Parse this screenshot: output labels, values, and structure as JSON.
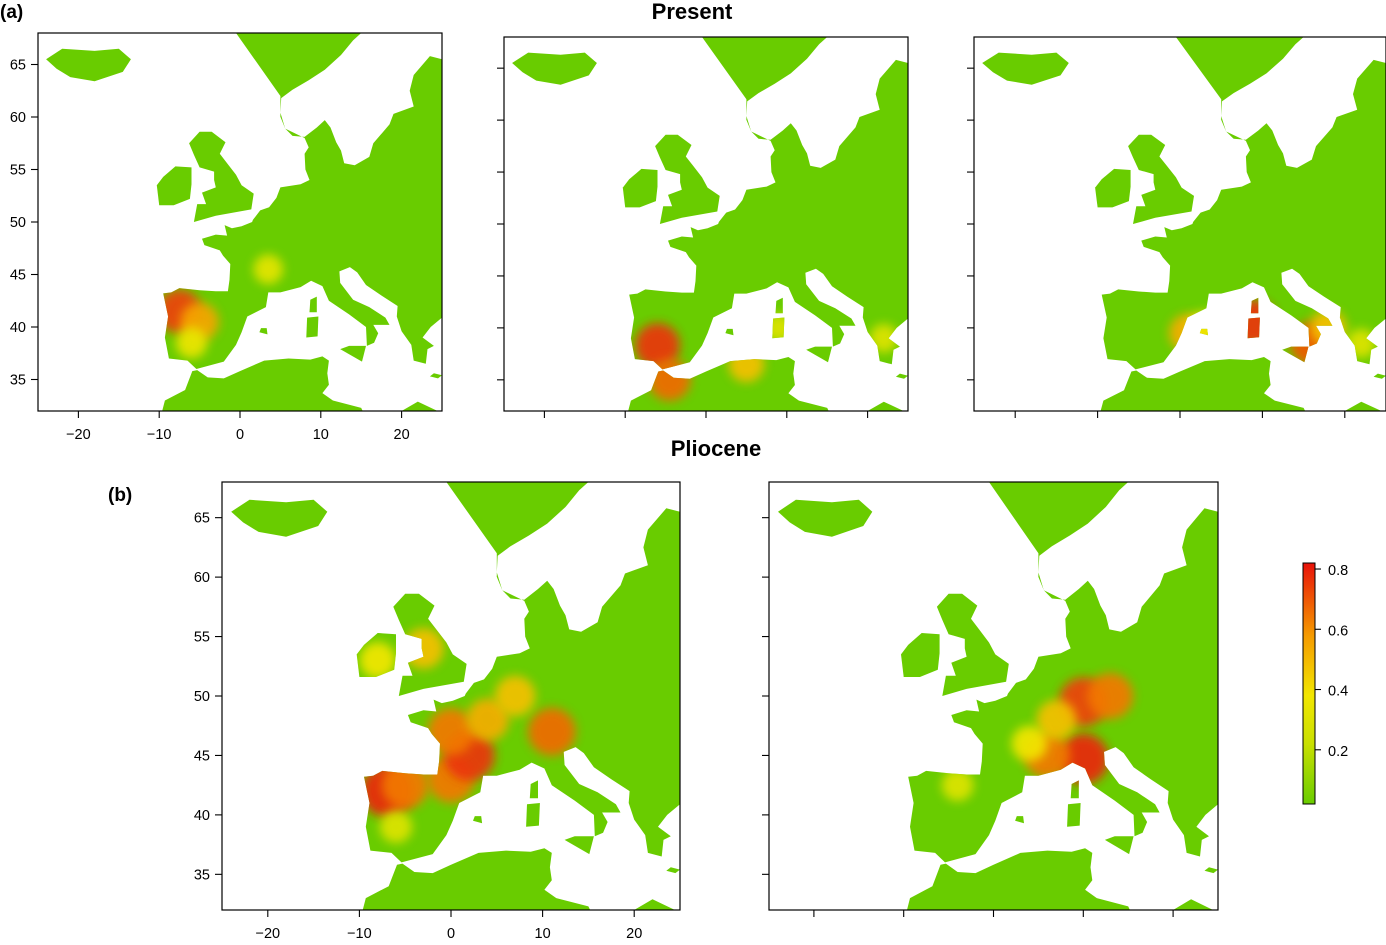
{
  "figure": {
    "panel_a_letter": "(a)",
    "panel_b_letter": "(b)",
    "row_a_title": "Present",
    "row_b_title": "Pliocene"
  },
  "axes": {
    "x_ticks": [
      -20,
      -10,
      0,
      10,
      20
    ],
    "y_ticks": [
      35,
      40,
      45,
      50,
      55,
      60,
      65
    ],
    "x_tick_labels": [
      "−20",
      "−10",
      "0",
      "10",
      "20"
    ],
    "y_tick_labels": [
      "35",
      "40",
      "45",
      "50",
      "55",
      "60",
      "65"
    ],
    "lon_range": [
      -25,
      25
    ],
    "lat_range": [
      32,
      68
    ]
  },
  "colors": {
    "land_low": "#69cc00",
    "mid": "#f2e600",
    "high": "#e8120a",
    "background": "#ffffff"
  },
  "colorbar": {
    "range": [
      0.02,
      0.82
    ],
    "tick_values": [
      0.2,
      0.4,
      0.6,
      0.8
    ],
    "tick_labels": [
      "0.2",
      "0.4",
      "0.6",
      "0.8"
    ]
  },
  "maps": [
    {
      "id": "present-1",
      "row": "a",
      "hotspots": [
        {
          "lon": -7.5,
          "lat": 41.5,
          "value": 0.78
        },
        {
          "lon": -5,
          "lat": 40.5,
          "value": 0.62
        },
        {
          "lon": -6,
          "lat": 38.5,
          "value": 0.42
        },
        {
          "lon": 3.5,
          "lat": 45.5,
          "value": 0.38
        }
      ]
    },
    {
      "id": "present-2",
      "row": "a",
      "hotspots": [
        {
          "lon": -6,
          "lat": 38.3,
          "value": 0.8
        },
        {
          "lon": -4.5,
          "lat": 35,
          "value": 0.72
        },
        {
          "lon": 5,
          "lat": 36.5,
          "value": 0.55
        },
        {
          "lon": 9,
          "lat": 40,
          "value": 0.35
        },
        {
          "lon": 22,
          "lat": 39,
          "value": 0.35
        }
      ]
    },
    {
      "id": "present-3",
      "row": "a",
      "hotspots": [
        {
          "lon": 9,
          "lat": 40.5,
          "value": 0.8
        },
        {
          "lon": 16,
          "lat": 38.5,
          "value": 0.75
        },
        {
          "lon": 18,
          "lat": 40,
          "value": 0.55
        },
        {
          "lon": 1,
          "lat": 39.5,
          "value": 0.6
        },
        {
          "lon": 3,
          "lat": 40,
          "value": 0.45
        },
        {
          "lon": 22,
          "lat": 38.5,
          "value": 0.35
        }
      ]
    },
    {
      "id": "pliocene-1",
      "row": "b",
      "hotspots": [
        {
          "lon": -7,
          "lat": 42,
          "value": 0.82
        },
        {
          "lon": -5,
          "lat": 42.5,
          "value": 0.7
        },
        {
          "lon": 0,
          "lat": 43,
          "value": 0.7
        },
        {
          "lon": 2,
          "lat": 45,
          "value": 0.8
        },
        {
          "lon": 0,
          "lat": 47,
          "value": 0.7
        },
        {
          "lon": 4,
          "lat": 48,
          "value": 0.6
        },
        {
          "lon": 11,
          "lat": 47,
          "value": 0.72
        },
        {
          "lon": 7,
          "lat": 50,
          "value": 0.55
        },
        {
          "lon": -3,
          "lat": 54,
          "value": 0.55
        },
        {
          "lon": -8,
          "lat": 53,
          "value": 0.45
        },
        {
          "lon": -6,
          "lat": 39,
          "value": 0.35
        }
      ]
    },
    {
      "id": "pliocene-2",
      "row": "b",
      "hotspots": [
        {
          "lon": 10,
          "lat": 44.7,
          "value": 0.82
        },
        {
          "lon": 6,
          "lat": 45,
          "value": 0.7
        },
        {
          "lon": 10,
          "lat": 49.5,
          "value": 0.78
        },
        {
          "lon": 13,
          "lat": 50,
          "value": 0.7
        },
        {
          "lon": 7,
          "lat": 48,
          "value": 0.55
        },
        {
          "lon": 4,
          "lat": 46,
          "value": 0.45
        },
        {
          "lon": -4,
          "lat": 42.5,
          "value": 0.35
        }
      ]
    }
  ]
}
